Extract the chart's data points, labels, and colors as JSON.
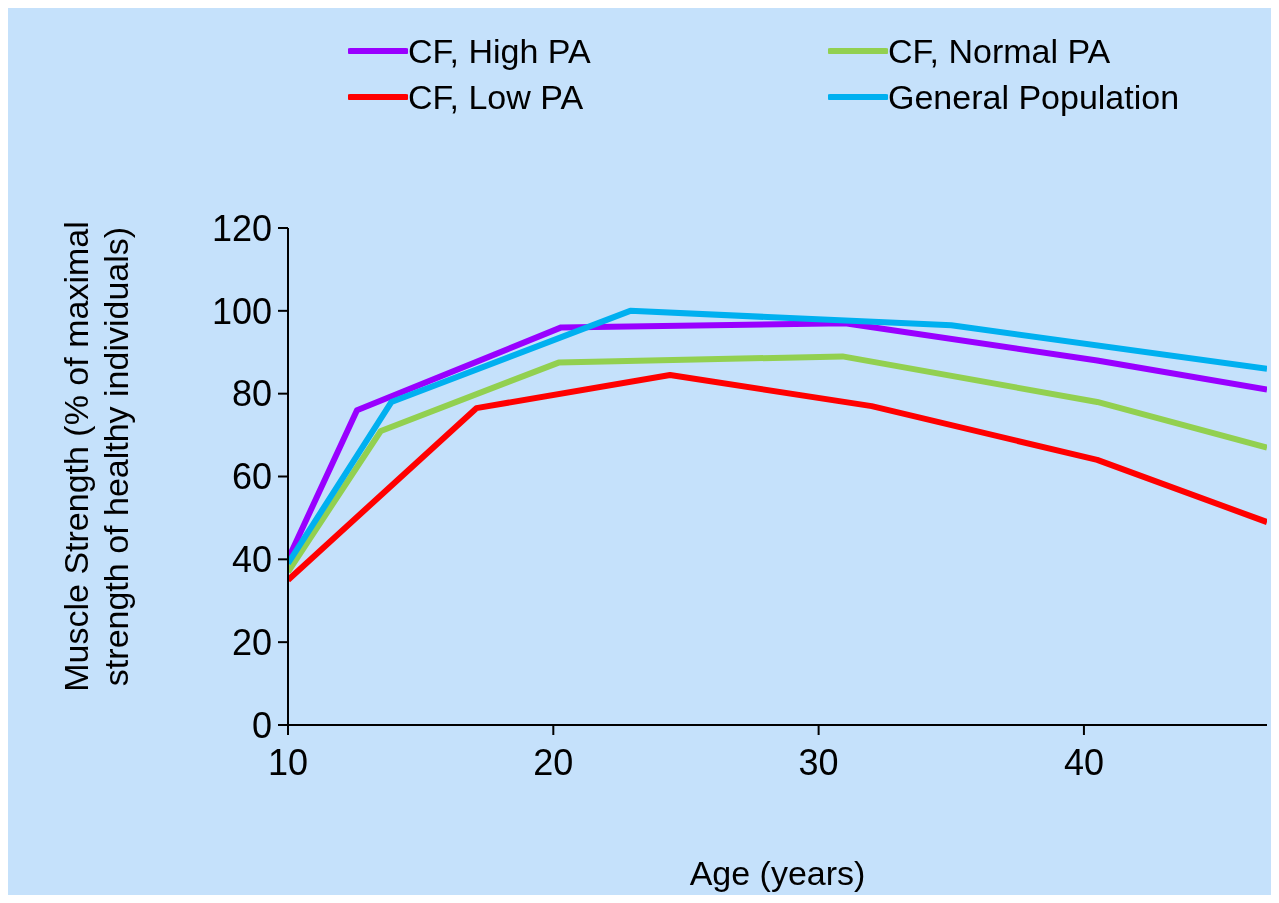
{
  "chart_data": {
    "type": "line",
    "xlabel": "Age (years)",
    "ylabel": "Muscle Strength (% of maximal strength of healthy individuals)",
    "xlim": [
      10,
      46.9
    ],
    "xticks": [
      10,
      20,
      30,
      40
    ],
    "ylim": [
      0,
      120
    ],
    "yticks": [
      0,
      20,
      40,
      60,
      80,
      100,
      120
    ],
    "grid": false,
    "legend": "top",
    "marker": "none",
    "line_style": "solid",
    "series": [
      {
        "name": "CF, High PA",
        "color": "#9900ff",
        "x": [
          10,
          12.6,
          20.3,
          31,
          40.5,
          46.9
        ],
        "values": [
          40,
          76,
          96,
          97,
          88,
          81
        ]
      },
      {
        "name": "CF, Normal PA",
        "color": "#92d050",
        "x": [
          10,
          13.5,
          20.2,
          30.9,
          40.5,
          46.9
        ],
        "values": [
          37,
          71,
          87.5,
          89,
          78,
          67
        ]
      },
      {
        "name": "CF, Low PA",
        "color": "#ff0000",
        "x": [
          10,
          17.1,
          24.4,
          32,
          40.5,
          46.9
        ],
        "values": [
          35,
          76.5,
          84.5,
          77,
          64,
          49
        ]
      },
      {
        "name": "General Population",
        "color": "#00b0f0",
        "x": [
          10,
          13.9,
          22.9,
          35,
          46.9
        ],
        "values": [
          39,
          78,
          100,
          96.5,
          86
        ]
      }
    ]
  }
}
